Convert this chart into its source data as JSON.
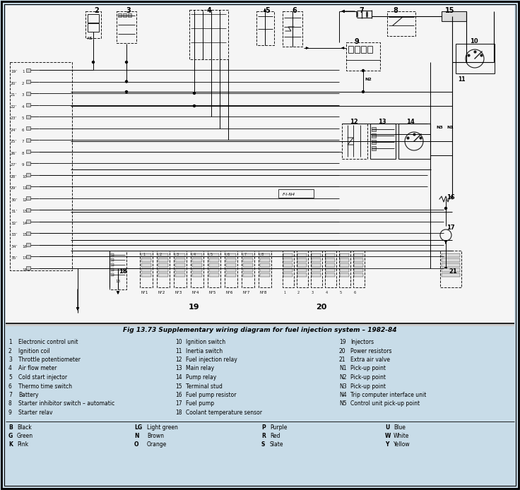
{
  "title": "Fig 13.73 Supplementary wiring diagram for fuel injection system – 1982-84",
  "bg_color": "#c8dce8",
  "inner_bg": "#f2f2f2",
  "black": "#000000",
  "dark": "#1a1a1a",
  "gray": "#666666",
  "lgray": "#aaaaaa",
  "figsize": [
    7.36,
    6.94
  ],
  "dpi": 100,
  "legend_col1": [
    [
      "1",
      "Electronic control unit"
    ],
    [
      "2",
      "Ignition coil"
    ],
    [
      "3",
      "Throttle potentiometer"
    ],
    [
      "4",
      "Air flow meter"
    ],
    [
      "5",
      "Cold start injector"
    ],
    [
      "6",
      "Thermo time switch"
    ],
    [
      "7",
      "Battery"
    ],
    [
      "8",
      "Starter inhibitor switch – automatic"
    ],
    [
      "9",
      "Starter relav"
    ]
  ],
  "legend_col2": [
    [
      "10",
      "Ignition switch"
    ],
    [
      "11",
      "Inertia switch"
    ],
    [
      "12",
      "Fuel injection relay"
    ],
    [
      "13",
      "Main relay"
    ],
    [
      "14",
      "Pump relay"
    ],
    [
      "15",
      "Terminal stud"
    ],
    [
      "16",
      "Fuel pump resistor"
    ],
    [
      "17",
      "Fuel pump"
    ],
    [
      "18",
      "Coolant temperature sensor"
    ]
  ],
  "legend_col3": [
    [
      "19",
      "Injectors"
    ],
    [
      "20",
      "Power resistors"
    ],
    [
      "21",
      "Extra air valve"
    ],
    [
      "N1",
      "Pick-up point"
    ],
    [
      "N2",
      "Pick-up point"
    ],
    [
      "N3",
      "Pick-up point"
    ],
    [
      "N4",
      "Trip computer interface unit"
    ],
    [
      "N5",
      "Control unit pick-up point"
    ]
  ],
  "color_col1": [
    [
      "B",
      "Black"
    ],
    [
      "G",
      "Green"
    ],
    [
      "K",
      "Pink"
    ]
  ],
  "color_col2": [
    [
      "LG",
      "Light green"
    ],
    [
      "N",
      "Brown"
    ],
    [
      "O",
      "Orange"
    ]
  ],
  "color_col3": [
    [
      "P",
      "Purple"
    ],
    [
      "R",
      "Red"
    ],
    [
      "S",
      "Slate"
    ]
  ],
  "color_col4": [
    [
      "U",
      "Blue"
    ],
    [
      "W",
      "White"
    ],
    [
      "Y",
      "Yellow"
    ]
  ]
}
